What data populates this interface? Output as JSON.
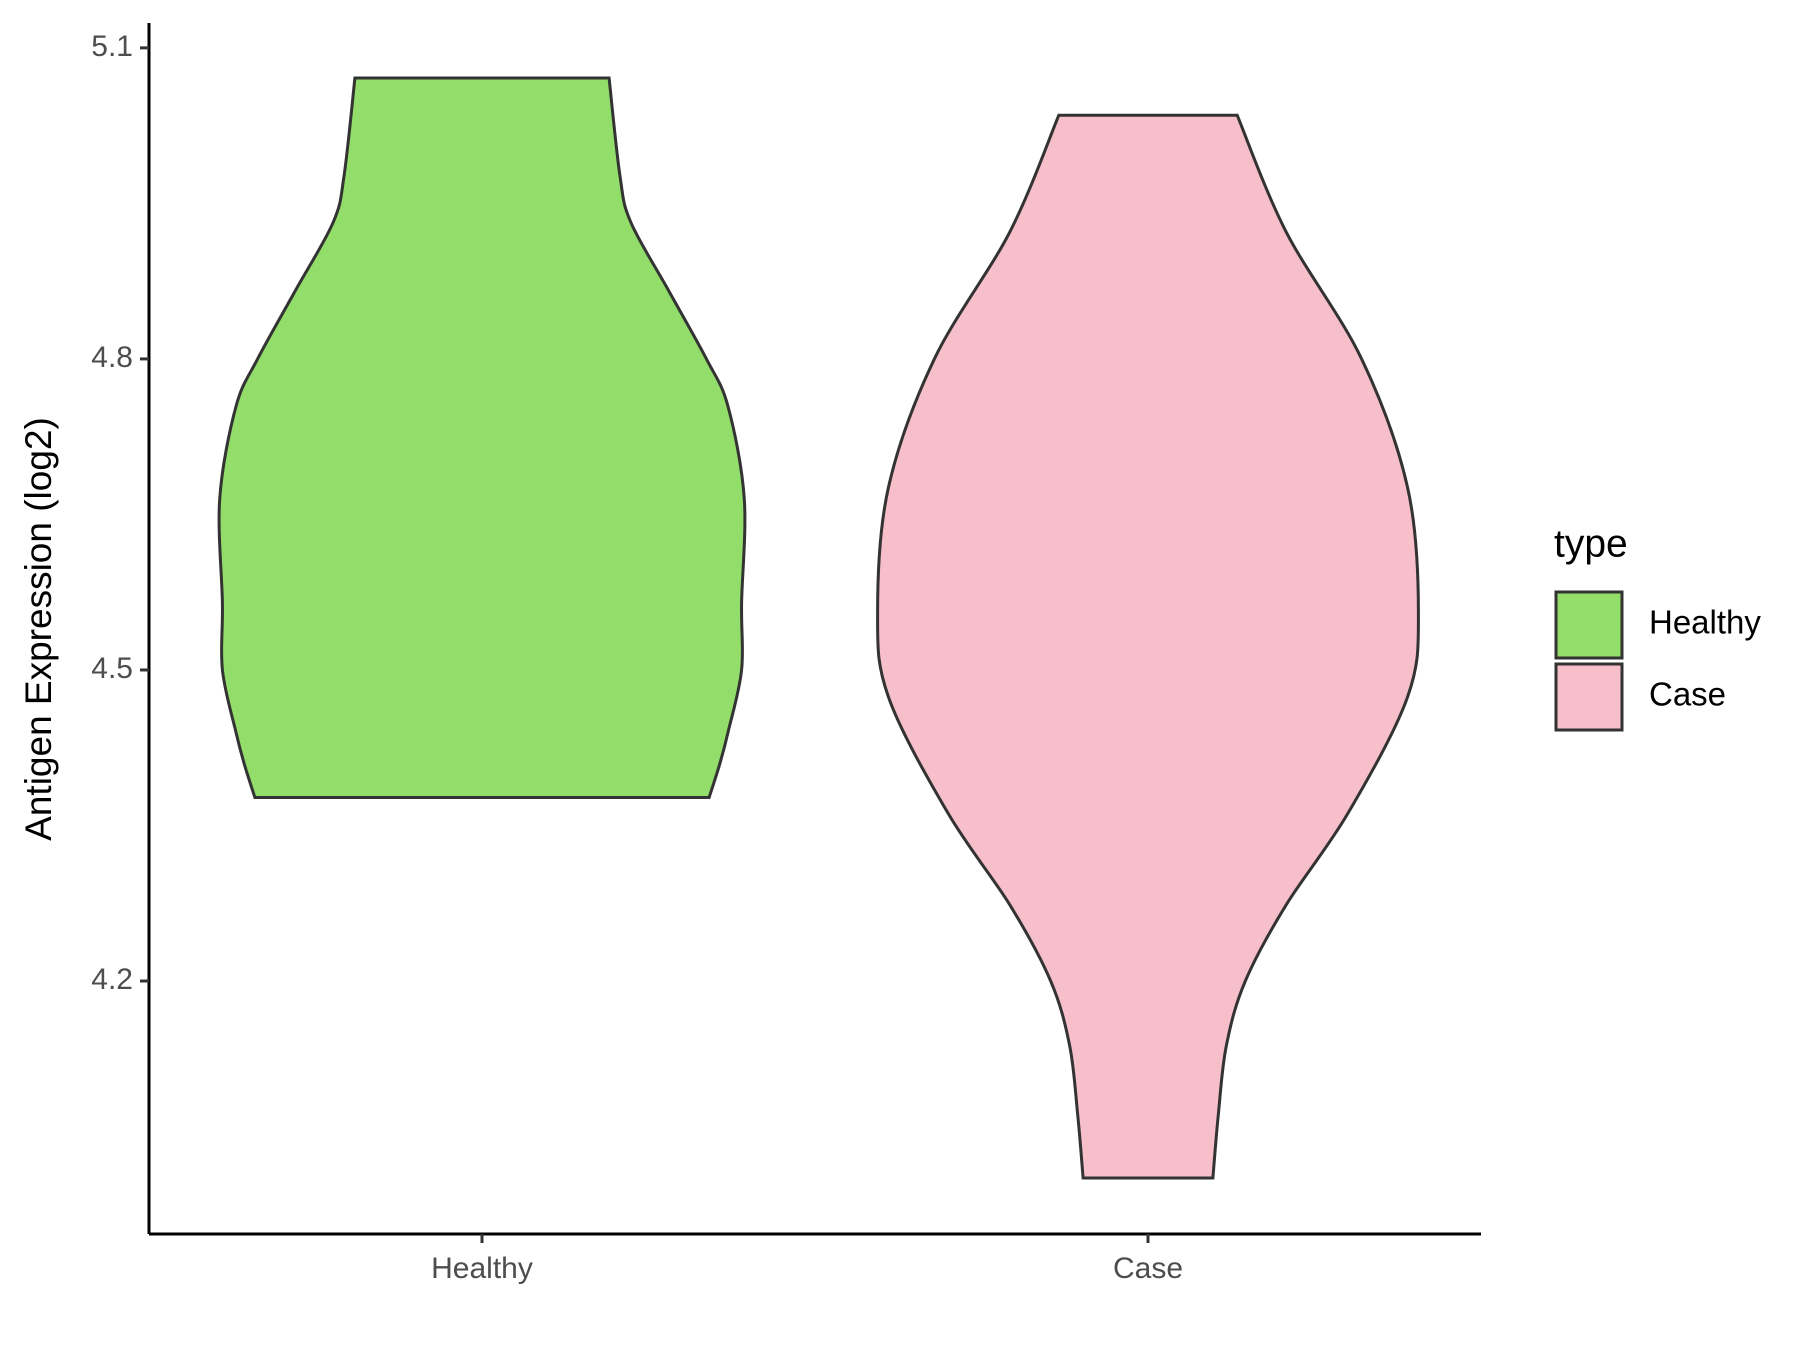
{
  "chart_data": {
    "type": "violin",
    "y_label": "Antigen Expression (log2)",
    "categories": [
      "Healthy",
      "Case"
    ],
    "series": [
      {
        "name": "Healthy",
        "color": "#93dd6a",
        "y": [
          5.071,
          4.977,
          4.932,
          4.866,
          4.8,
          4.754,
          4.665,
          4.564,
          4.5,
          4.44,
          4.41,
          4.377
        ],
        "density": [
          0.47,
          0.51,
          0.55,
          0.69,
          0.83,
          0.91,
          0.97,
          0.96,
          0.96,
          0.91,
          0.88,
          0.84
        ]
      },
      {
        "name": "Case",
        "color": "#f7bfca",
        "y": [
          5.035,
          4.923,
          4.8,
          4.676,
          4.556,
          4.474,
          4.362,
          4.273,
          4.2,
          4.138,
          4.071,
          4.01
        ],
        "density": [
          0.33,
          0.51,
          0.79,
          0.96,
          1.0,
          0.96,
          0.74,
          0.51,
          0.36,
          0.29,
          0.26,
          0.24
        ]
      }
    ],
    "ylim": [
      3.956,
      5.124
    ],
    "yticks": [
      {
        "value": 4.2,
        "label": "4.2"
      },
      {
        "value": 4.5,
        "label": "4.5"
      },
      {
        "value": 4.8,
        "label": "4.8"
      },
      {
        "value": 5.1,
        "label": "5.1"
      }
    ],
    "legend_title": "type",
    "legend": "right",
    "grid": false
  }
}
